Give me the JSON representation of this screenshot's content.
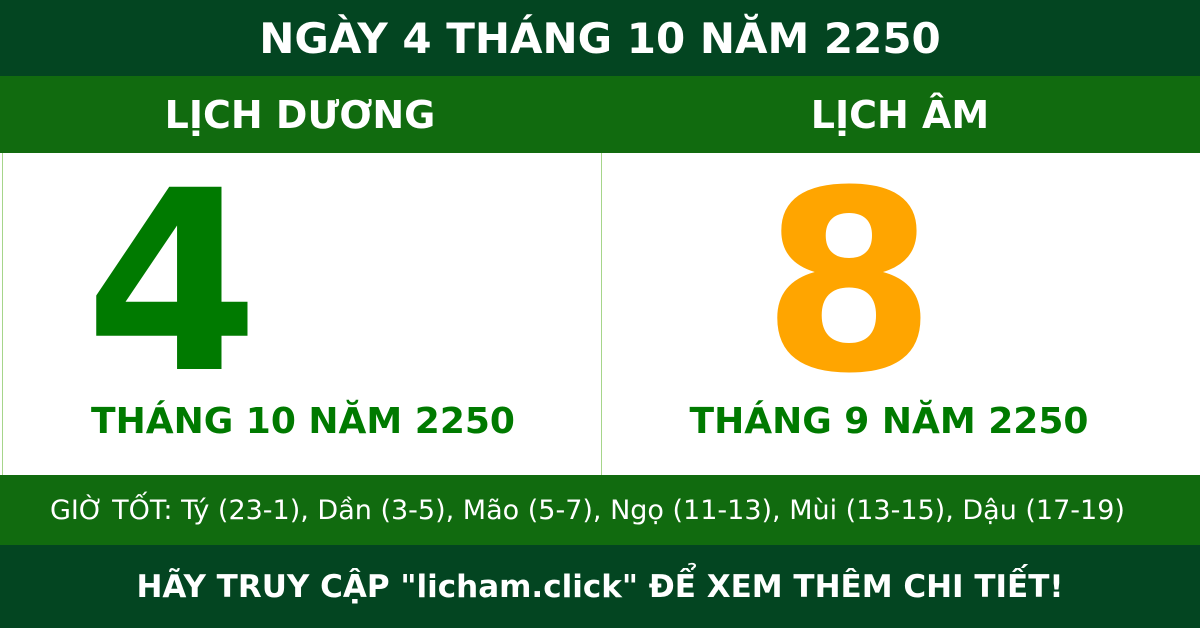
{
  "title": "NGÀY 4 THÁNG 10 NĂM 2250",
  "solar": {
    "heading": "LỊCH DƯƠNG",
    "day": "4",
    "month_year": "THÁNG 10 NĂM 2250"
  },
  "lunar": {
    "heading": "LỊCH ÂM",
    "day": "8",
    "month_year": "THÁNG 9 NĂM 2250"
  },
  "good_hours": "GIỜ TỐT: Tý (23-1), Dần (3-5), Mão (5-7), Ngọ (11-13), Mùi (13-15), Dậu (17-19)",
  "footer": "HÃY TRUY CẬP \"licham.click\" ĐỂ XEM THÊM CHI TIẾT!",
  "colors": {
    "dark_green": "#034521",
    "green": "#116b0f",
    "solar_day": "#007a00",
    "lunar_day": "#ffa500"
  }
}
